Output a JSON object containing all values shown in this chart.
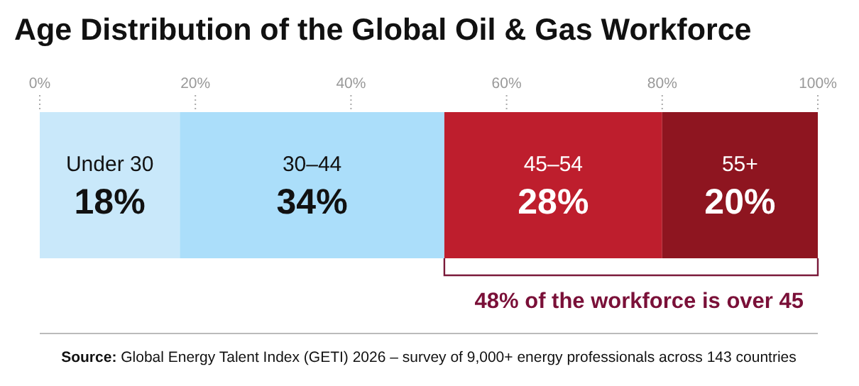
{
  "chart_data": {
    "type": "bar",
    "title": "Age Distribution of the Global Oil & Gas Workforce",
    "orientation": "horizontal",
    "stacked": true,
    "categories": [
      null
    ],
    "series": [
      {
        "name": "Under 30",
        "color": "#c9e8fa",
        "values": [
          18
        ],
        "value_labels": [
          "18%"
        ]
      },
      {
        "name": "30–44",
        "color": "#abdefa",
        "values": [
          34
        ],
        "value_labels": [
          "34%"
        ]
      },
      {
        "name": "45–54",
        "color": "#be1e2d",
        "values": [
          28
        ],
        "value_labels": [
          "28%"
        ]
      },
      {
        "name": "55+",
        "color": "#8e1520",
        "values": [
          20
        ],
        "value_labels": [
          "20%"
        ]
      }
    ],
    "xlim": [
      0,
      100
    ],
    "xticks": [
      {
        "value": 0,
        "label": "0%"
      },
      {
        "value": 20,
        "label": "20%"
      },
      {
        "value": 40,
        "label": "40%"
      },
      {
        "value": 60,
        "label": "60%"
      },
      {
        "value": 80,
        "label": "80%"
      },
      {
        "value": 100,
        "label": "100%"
      }
    ],
    "grid": false,
    "annotations": [
      "48% of the workforce is over 45",
      "Source: Global Energy Talent Index (GETI) 2026 – survey of 9,000+ energy professionals across 143 countries"
    ]
  }
}
